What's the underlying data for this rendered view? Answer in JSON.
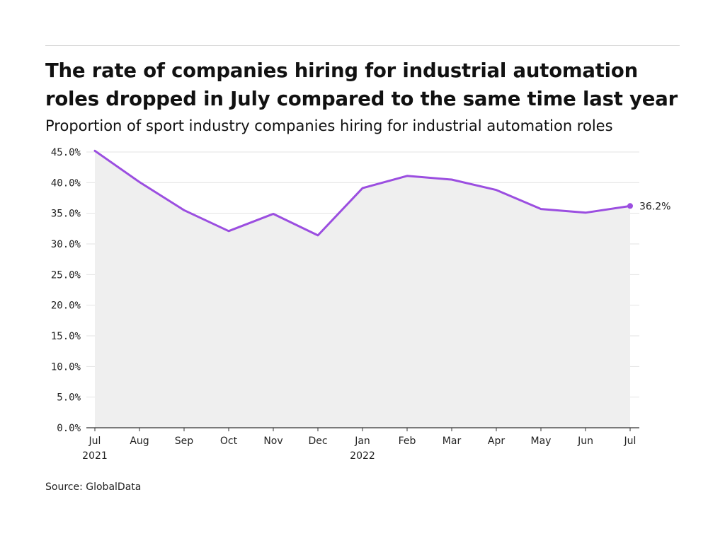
{
  "title": "The rate of companies hiring for industrial automation roles dropped in July compared to the same time last year",
  "subtitle": "Proportion of sport industry companies hiring for industrial automation roles",
  "source": "Source: GlobalData",
  "colors": {
    "line": "#9b4ee0",
    "area": "#efefef",
    "grid": "#e3e3e3",
    "axis": "#333333"
  },
  "chart_data": {
    "type": "area",
    "x": [
      "Jul",
      "Aug",
      "Sep",
      "Oct",
      "Nov",
      "Dec",
      "Jan",
      "Feb",
      "Mar",
      "Apr",
      "May",
      "Jun",
      "Jul"
    ],
    "x_sublabels": [
      "2021",
      "",
      "",
      "",
      "",
      "",
      "2022",
      "",
      "",
      "",
      "",
      "",
      ""
    ],
    "series": [
      {
        "values": [
          45.2,
          40.1,
          35.5,
          32.1,
          34.9,
          31.4,
          39.1,
          41.1,
          40.5,
          38.8,
          35.7,
          35.1,
          36.2
        ]
      }
    ],
    "y_ticks": [
      "0.0%",
      "5.0%",
      "10.0%",
      "15.0%",
      "20.0%",
      "25.0%",
      "30.0%",
      "35.0%",
      "40.0%",
      "45.0%"
    ],
    "ylim": [
      0,
      45
    ],
    "grid": true,
    "end_label": "36.2%"
  }
}
